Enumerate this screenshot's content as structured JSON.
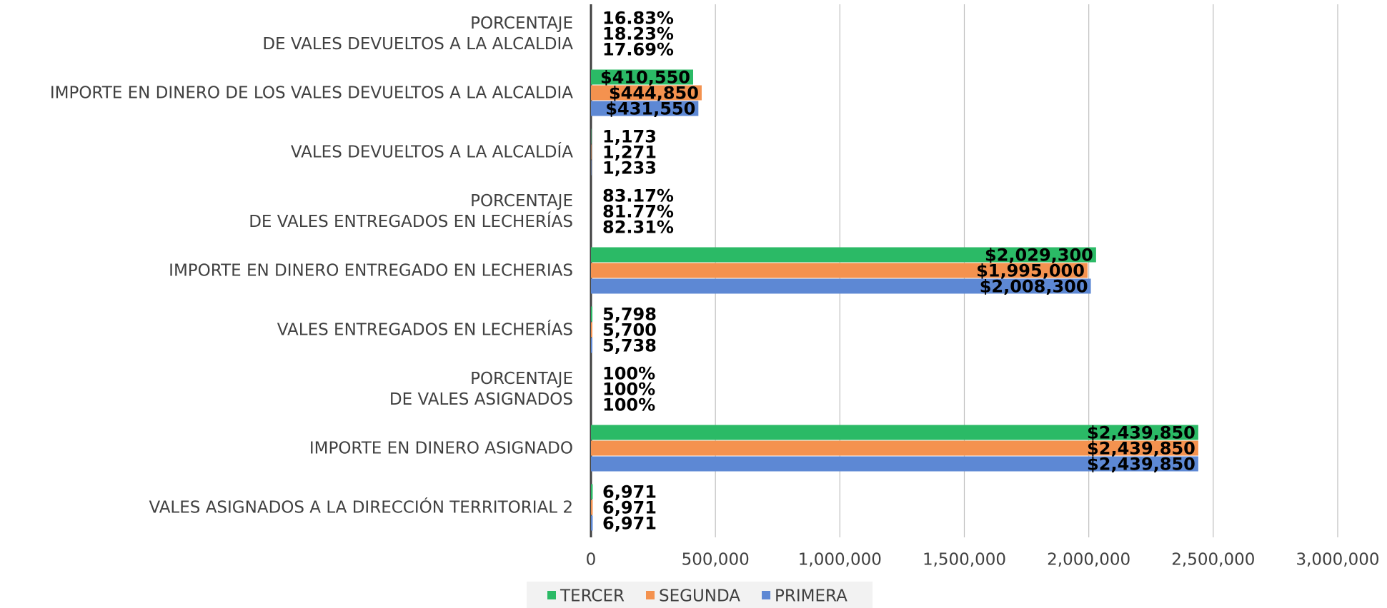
{
  "chart_data": {
    "type": "bar",
    "orientation": "horizontal",
    "categories": [
      "PORCENTAJE\nDE VALES DEVUELTOS A LA ALCALDIA",
      "IMPORTE EN DINERO DE LOS VALES DEVUELTOS A LA ALCALDIA",
      "VALES DEVUELTOS A LA ALCALDÍA",
      "PORCENTAJE\nDE VALES ENTREGADOS EN LECHERÍAS",
      "IMPORTE EN DINERO ENTREGADO EN LECHERIAS",
      "VALES ENTREGADOS EN LECHERÍAS",
      "PORCENTAJE\nDE VALES ASIGNADOS",
      "IMPORTE EN DINERO ASIGNADO",
      "VALES ASIGNADOS A LA DIRECCIÓN TERRITORIAL 2"
    ],
    "series": [
      {
        "name": "TERCER",
        "color": "#2bba66",
        "values": [
          16.83,
          410550,
          1173,
          83.17,
          2029300,
          5798,
          100,
          2439850,
          6971
        ],
        "value_labels": [
          "16.83%",
          "$410,550",
          "1,173",
          "83.17%",
          "$2,029,300",
          "5,798",
          "100%",
          "$2,439,850",
          "6,971"
        ]
      },
      {
        "name": "SEGUNDA",
        "color": "#f4924f",
        "values": [
          18.23,
          444850,
          1271,
          81.77,
          1995000,
          5700,
          100,
          2439850,
          6971
        ],
        "value_labels": [
          "18.23%",
          "$444,850",
          "1,271",
          "81.77%",
          "$1,995,000",
          "5,700",
          "100%",
          "$2,439,850",
          "6,971"
        ]
      },
      {
        "name": "PRIMERA",
        "color": "#5d88d4",
        "values": [
          17.69,
          431550,
          1233,
          82.31,
          2008300,
          5738,
          100,
          2439850,
          6971
        ],
        "value_labels": [
          "17.69%",
          "$431,550",
          "1,233",
          "82.31%",
          "$2,008,300",
          "5,738",
          "100%",
          "$2,439,850",
          "6,971"
        ]
      }
    ],
    "xlim": [
      0,
      3000000
    ],
    "xticks": [
      0,
      {
        "value": 500000,
        "label": "500,000"
      },
      {
        "value": 1000000,
        "label": "1,000,000"
      },
      {
        "value": 1500000,
        "label": "1,500,000"
      },
      {
        "value": 2000000,
        "label": "2,000,000"
      },
      {
        "value": 2500000,
        "label": "2,500,000"
      },
      {
        "value": 3000000,
        "label": "3,000,000"
      }
    ],
    "grid": true,
    "legend": "bottom"
  }
}
